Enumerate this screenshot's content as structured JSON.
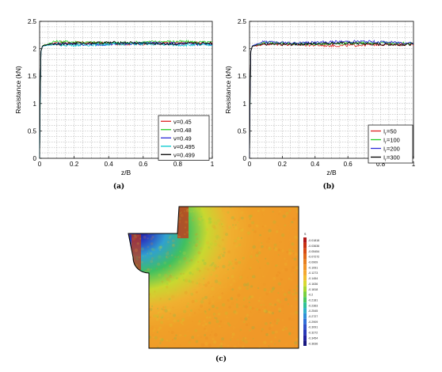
{
  "chart_data": [
    {
      "type": "line",
      "panel": "(a)",
      "xlabel": "z/B",
      "ylabel": "Resistance (kN)",
      "xlim": [
        0,
        1
      ],
      "ylim": [
        0,
        2.5
      ],
      "x_ticks": [
        "0",
        "0.2",
        "0.4",
        "0.6",
        "0.8",
        "1"
      ],
      "y_ticks": [
        "0",
        "0.5",
        "1",
        "1.5",
        "2",
        "2.5"
      ],
      "grid": true,
      "legend_position": "bottom-right",
      "series": [
        {
          "name": "ν=0.45",
          "color": "#e02020",
          "plateau": 2.1
        },
        {
          "name": "ν=0.48",
          "color": "#22cc22",
          "plateau": 2.12
        },
        {
          "name": "ν=0.49",
          "color": "#2a2ad8",
          "plateau": 2.09
        },
        {
          "name": "ν=0.495",
          "color": "#00c8d0",
          "plateau": 2.08
        },
        {
          "name": "ν=0.499",
          "color": "#000000",
          "plateau": 2.1
        }
      ]
    },
    {
      "type": "line",
      "panel": "(b)",
      "xlabel": "z/B",
      "ylabel": "Resistance (kN)",
      "xlim": [
        0,
        1
      ],
      "ylim": [
        0,
        2.5
      ],
      "x_ticks": [
        "0",
        "0.2",
        "0.4",
        "0.6",
        "0.8",
        "1"
      ],
      "y_ticks": [
        "0",
        "0.5",
        "1",
        "1.5",
        "2",
        "2.5"
      ],
      "grid": true,
      "legend_position": "bottom-right",
      "series": [
        {
          "name": "I =50",
          "subscript": "r",
          "color": "#e02020",
          "plateau": 2.07
        },
        {
          "name": "I =100",
          "subscript": "r",
          "color": "#22cc22",
          "plateau": 2.1
        },
        {
          "name": "I =200",
          "subscript": "r",
          "color": "#2a2ad8",
          "plateau": 2.12
        },
        {
          "name": "I =300",
          "subscript": "r",
          "color": "#000000",
          "plateau": 2.09
        }
      ]
    }
  ],
  "contour": {
    "panel": "(c)",
    "legend_header": "S",
    "legend_levels": [
      "-0.01818",
      "-0.03636",
      "-0.05454",
      "-0.07272",
      "-0.0909",
      "-0.1091",
      "-0.1273",
      "-0.1454",
      "-0.1636",
      "-0.1818",
      "-0.2",
      "-0.2181",
      "-0.2363",
      "-0.2545",
      "-0.2727",
      "-0.2909",
      "-0.3091",
      "-0.3272",
      "-0.3454",
      "-0.3636"
    ],
    "legend_colors": [
      "#b01818",
      "#c83010",
      "#d84c14",
      "#e06818",
      "#e88020",
      "#f09428",
      "#f4a830",
      "#f0c030",
      "#d8d830",
      "#a8d830",
      "#78d040",
      "#48c860",
      "#30c098",
      "#30b0c8",
      "#3090d8",
      "#3070d8",
      "#3050c8",
      "#2838b8",
      "#2020a0",
      "#181880"
    ]
  },
  "captions": {
    "a": "(a)",
    "b": "(b)",
    "c": "(c)"
  }
}
